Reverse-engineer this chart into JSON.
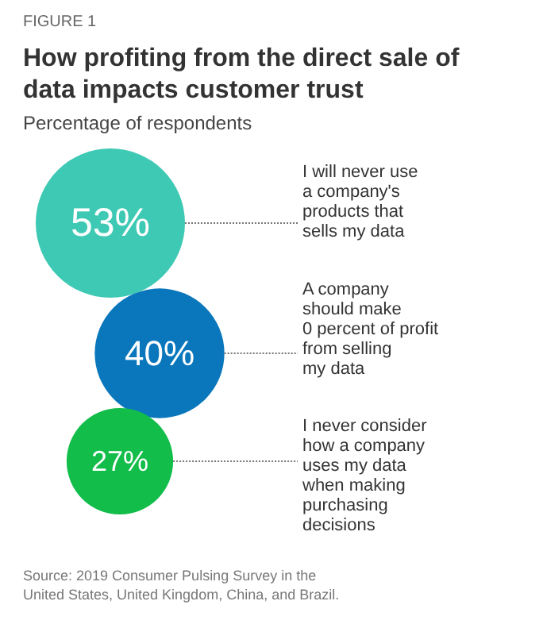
{
  "chart_data": {
    "type": "other",
    "title": "How profiting from the direct sale of\ndata impacts customer trust",
    "subtitle": "Percentage of respondents",
    "categories": [
      "I will never use\na company's\nproducts that\nsells my data",
      "A company\nshould make\n0 percent of profit\nfrom selling\nmy data",
      "I never consider\nhow a company\nuses my data\nwhen making\npurchasing\ndecisions"
    ],
    "values": [
      53,
      40,
      27
    ],
    "value_labels": [
      "53%",
      "40%",
      "27%"
    ],
    "colors": [
      "#3ec9b4",
      "#0a77bc",
      "#12bd4a"
    ],
    "annotations": [
      "FIGURE 1",
      "Source: 2019 Consumer Pulsing Survey in the\nUnited States, United Kingdom, China, and Brazil."
    ]
  }
}
